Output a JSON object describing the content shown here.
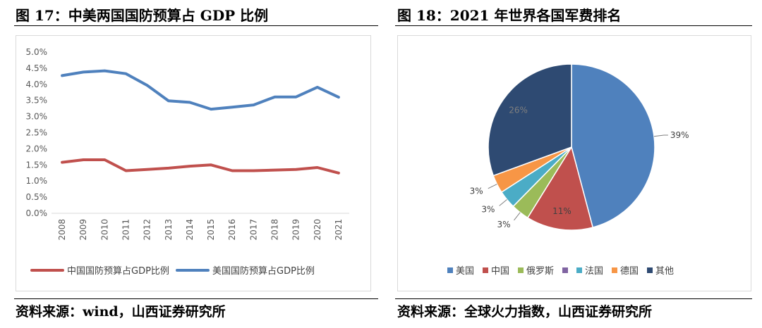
{
  "left_title": "图 17：中美两国国防预算占 GDP 比例",
  "right_title": "图 18：2021 年世界各国军费排名",
  "left_source": "资料来源：wind，山西证券研究所",
  "right_source": "资料来源：全球火力指数，山西证券研究所",
  "chart_data": [
    {
      "type": "line",
      "title": "中美两国国防预算占 GDP 比例",
      "x": [
        "2008",
        "2009",
        "2010",
        "2011",
        "2012",
        "2013",
        "2014",
        "2015",
        "2016",
        "2017",
        "2018",
        "2019",
        "2020",
        "2021"
      ],
      "ylim": [
        0,
        5
      ],
      "yticks": [
        "0.0%",
        "0.5%",
        "1.0%",
        "1.5%",
        "2.0%",
        "2.5%",
        "3.0%",
        "3.5%",
        "4.0%",
        "4.5%",
        "5.0%"
      ],
      "series": [
        {
          "name": "中国国防预算占GDP比例",
          "color": "#C0504D",
          "values": [
            1.58,
            1.66,
            1.66,
            1.32,
            1.36,
            1.4,
            1.46,
            1.5,
            1.32,
            1.32,
            1.34,
            1.36,
            1.42,
            1.25
          ]
        },
        {
          "name": "美国国防预算占GDP比例",
          "color": "#4F81BD",
          "values": [
            4.27,
            4.38,
            4.42,
            4.33,
            3.97,
            3.49,
            3.44,
            3.23,
            3.29,
            3.36,
            3.61,
            3.61,
            3.91,
            3.6
          ]
        }
      ]
    },
    {
      "type": "pie",
      "title": "2021 年世界各国军费排名",
      "slices": [
        {
          "name": "美国",
          "value": 39,
          "label": "39%",
          "color": "#4F81BD"
        },
        {
          "name": "中国",
          "value": 11,
          "label": "11%",
          "color": "#C0504D"
        },
        {
          "name": "俄罗斯",
          "value": 3,
          "label": "3%",
          "color": "#9BBB59"
        },
        {
          "name": "法国",
          "value": 3,
          "label": "3%",
          "color": "#4BACC6"
        },
        {
          "name": "德国",
          "value": 3,
          "label": "3%",
          "color": "#F79646"
        },
        {
          "name": "其他",
          "value": 26,
          "label": "26%",
          "color": "#2E4A72"
        }
      ],
      "legend": [
        {
          "name": "美国",
          "color": "#4F81BD"
        },
        {
          "name": "中国",
          "color": "#C0504D"
        },
        {
          "name": "俄罗斯",
          "color": "#9BBB59"
        },
        {
          "name": "",
          "color": "#8064A2"
        },
        {
          "name": "法国",
          "color": "#4BACC6"
        },
        {
          "name": "德国",
          "color": "#F79646"
        },
        {
          "name": "其他",
          "color": "#2E4A72"
        }
      ]
    }
  ]
}
